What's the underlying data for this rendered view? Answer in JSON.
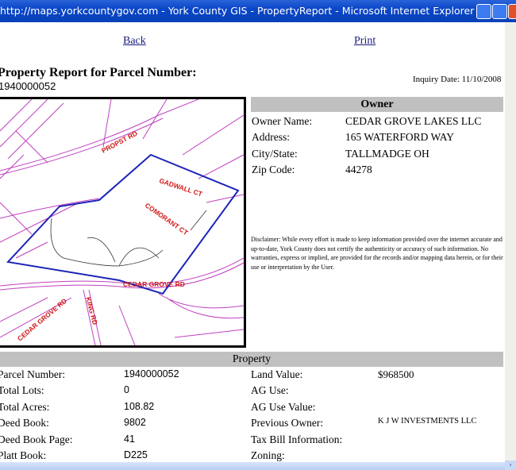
{
  "window": {
    "title": "http://maps.yorkcountygov.com - York County GIS - PropertyReport - Microsoft Internet Explorer"
  },
  "nav": {
    "back": "Back",
    "print": "Print"
  },
  "report": {
    "heading": "Property Report for Parcel Number:",
    "parcel": "1940000052",
    "inquiry_date": "Inquiry Date: 11/10/2008"
  },
  "map": {
    "labels": [
      "PROPST RD",
      "GADWALL CT",
      "COMORANT CT",
      "CEDAR GROVE RD",
      "CEDAR GROVE RD",
      "KING RD"
    ]
  },
  "owner": {
    "header": "Owner",
    "rows": [
      {
        "label": "Owner Name:",
        "value": "CEDAR GROVE LAKES LLC"
      },
      {
        "label": "Address:",
        "value": "165 WATERFORD WAY"
      },
      {
        "label": "City/State:",
        "value": "TALLMADGE OH"
      },
      {
        "label": "Zip Code:",
        "value": "44278"
      }
    ]
  },
  "disclaimer": "Disclaimer: While every effort is made to keep information provided over the internet accurate and up-to-date, York County does not certify the authenticity or accuracy of such information. No warranties, express or implied, are provided for the records and/or mapping data herein, or for their use or interpretation by the User.",
  "property": {
    "header": "Property",
    "rows": [
      {
        "l1": "Parcel Number:",
        "v1": "1940000052",
        "l2": "Land Value:",
        "v2": "$968500"
      },
      {
        "l1": "Total Lots:",
        "v1": "0",
        "l2": "AG Use:",
        "v2": ""
      },
      {
        "l1": "Total Acres:",
        "v1": "108.82",
        "l2": "AG Use Value:",
        "v2": ""
      },
      {
        "l1": "Deed Book:",
        "v1": "9802",
        "l2": "Previous Owner:",
        "v2": "K J W INVESTMENTS LLC"
      },
      {
        "l1": "Deed Book Page:",
        "v1": "41",
        "l2": "Tax Bill Information:",
        "v2": ""
      },
      {
        "l1": "Platt Book:",
        "v1": "D225",
        "l2": "Zoning:",
        "v2": ""
      }
    ]
  }
}
